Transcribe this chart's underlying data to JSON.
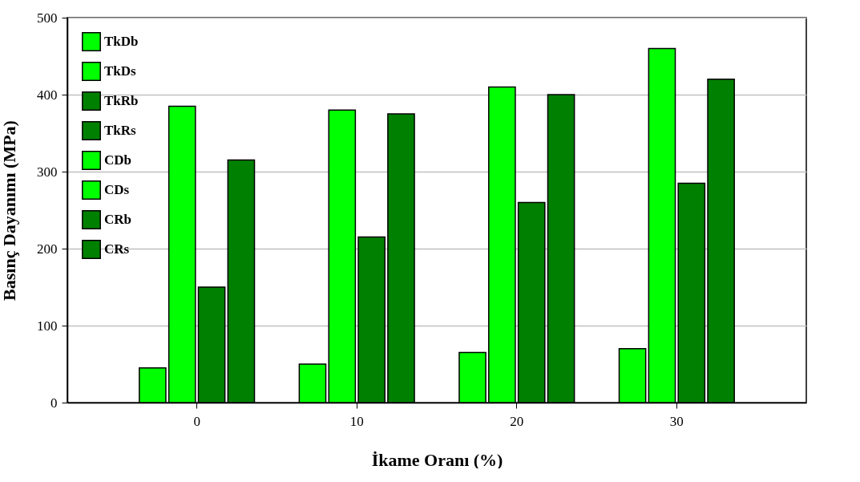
{
  "chart_data": {
    "type": "bar",
    "xlabel": "İkame Oranı (%)",
    "ylabel": "Basınç Dayanımı (MPa)",
    "categories": [
      "0",
      "10",
      "20",
      "30"
    ],
    "series": [
      {
        "name": "TkDb",
        "color": "#00ff00",
        "values": [
          45,
          50,
          65,
          70
        ]
      },
      {
        "name": "TkDs",
        "color": "#00ff00",
        "values": [
          385,
          380,
          410,
          460
        ]
      },
      {
        "name": "TkRb",
        "color": "#008000",
        "values": [
          150,
          215,
          260,
          285
        ]
      },
      {
        "name": "TkRs",
        "color": "#008000",
        "values": [
          315,
          375,
          400,
          420
        ]
      },
      {
        "name": "CDb",
        "color": "#00ff00",
        "values": [
          null,
          null,
          null,
          null
        ]
      },
      {
        "name": "CDs",
        "color": "#00ff00",
        "values": [
          null,
          null,
          null,
          null
        ]
      },
      {
        "name": "CRb",
        "color": "#008000",
        "values": [
          null,
          null,
          null,
          null
        ]
      },
      {
        "name": "CRs",
        "color": "#008000",
        "values": [
          null,
          null,
          null,
          null
        ]
      }
    ],
    "ylim": [
      0,
      500
    ],
    "yticks": [
      0,
      100,
      200,
      300,
      400,
      500
    ],
    "grid": "y",
    "legend": "top left"
  }
}
